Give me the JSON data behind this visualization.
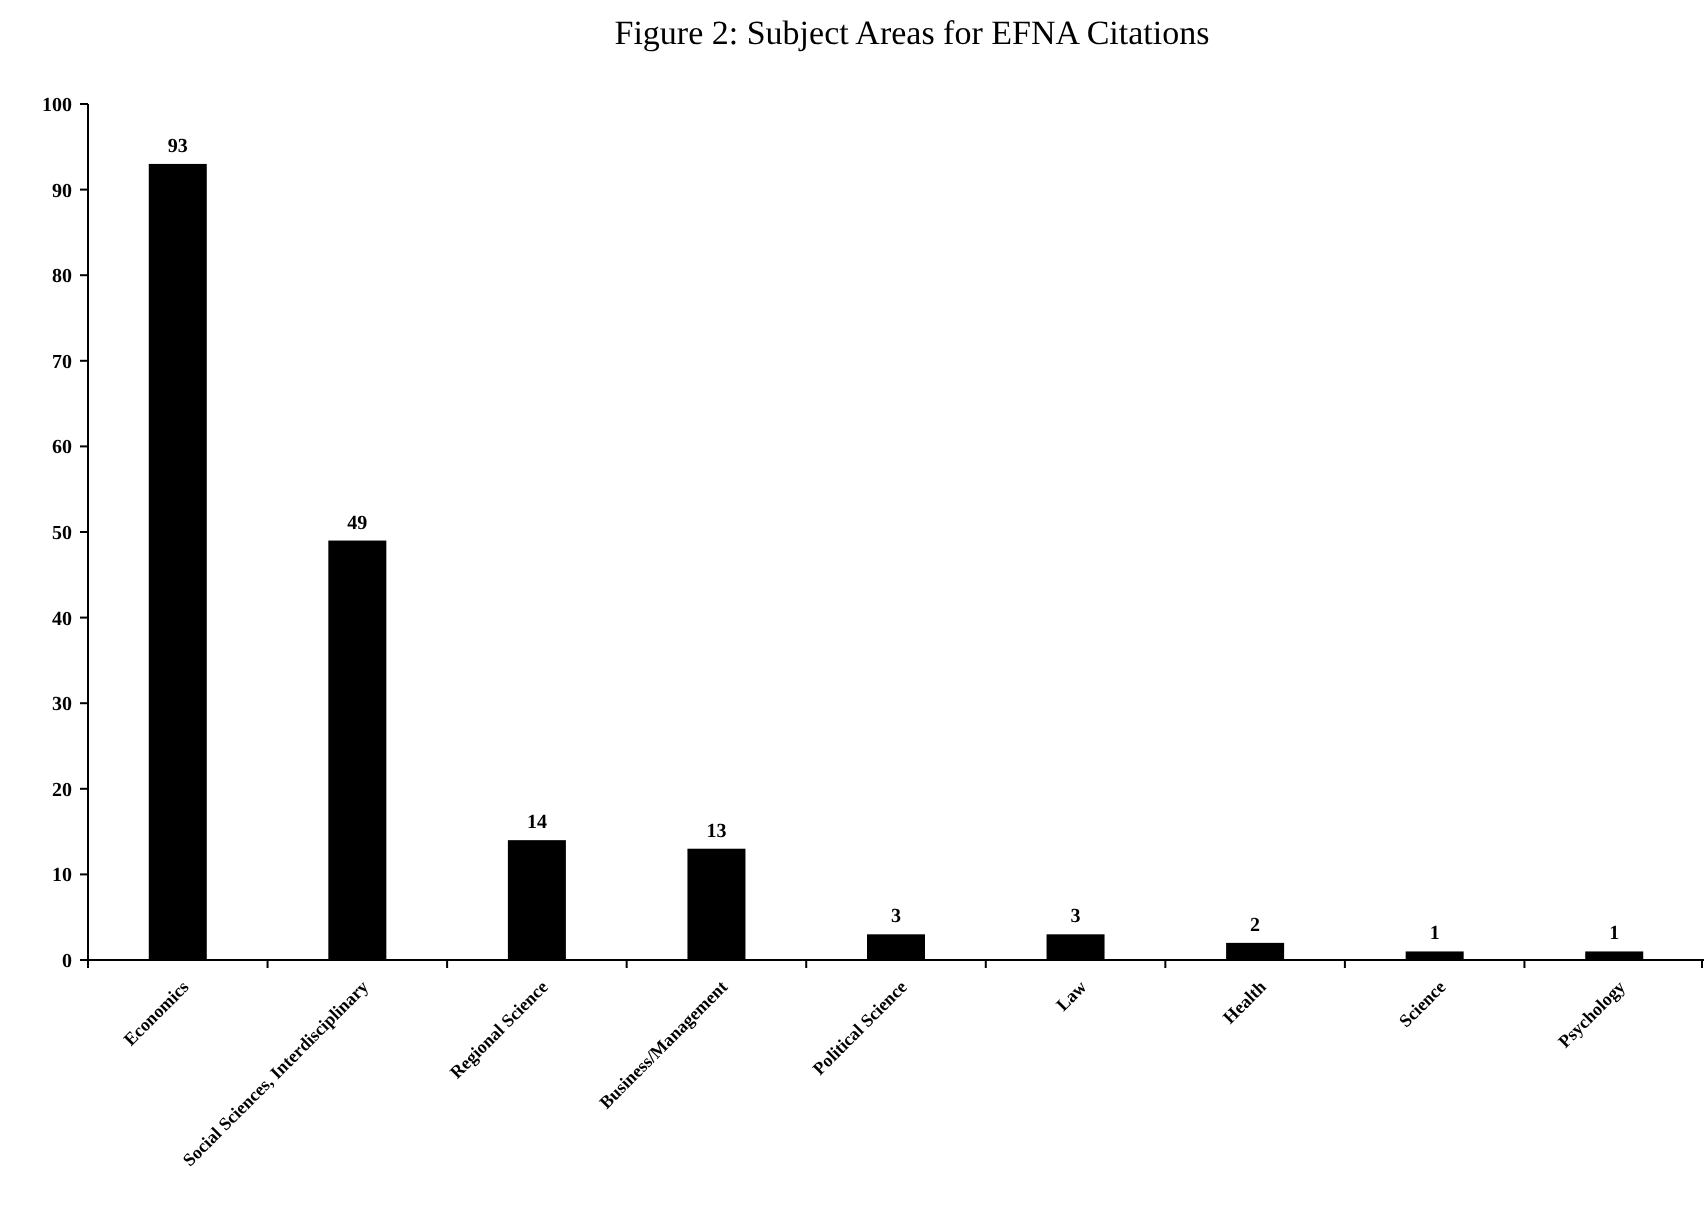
{
  "chart_data": {
    "type": "bar",
    "title": "Figure 2: Subject Areas for EFNA Citations",
    "categories": [
      "Economics",
      "Social Sciences, Interdisciplinary",
      "Regional Science",
      "Business/Management",
      "Political Science",
      "Law",
      "Health",
      "Science",
      "Psychology"
    ],
    "values": [
      93,
      49,
      14,
      13,
      3,
      3,
      2,
      1,
      1
    ],
    "color": "#000000",
    "ylim": [
      0,
      100
    ],
    "yticks": [
      0,
      10,
      20,
      30,
      40,
      50,
      60,
      70,
      80,
      90,
      100
    ],
    "grid": false,
    "data_labels": true
  }
}
